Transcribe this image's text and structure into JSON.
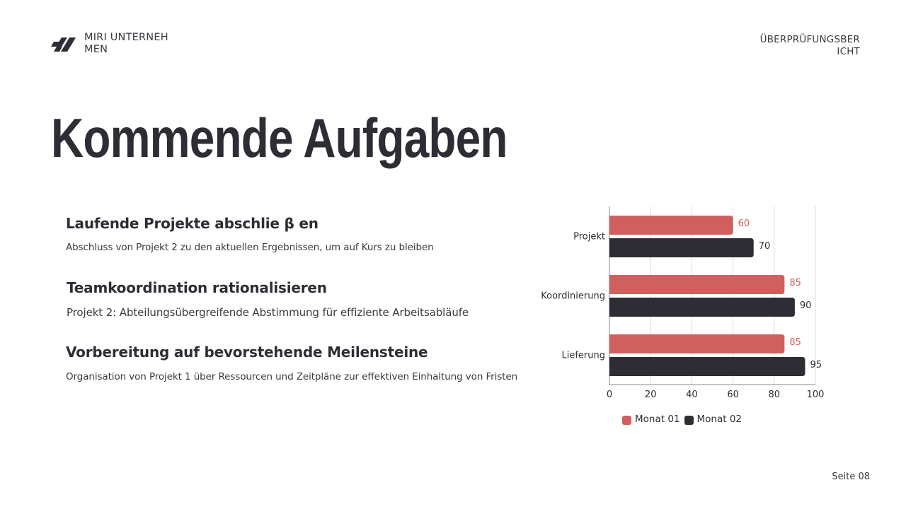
{
  "header": {
    "company_name": "MIRI UNTERNEH MEN",
    "logo_icon": "slanted-bars-logo-icon",
    "report_label": "ÜBERPRÜFUNGSBER ICHT"
  },
  "title": "Kommende Aufgaben",
  "tasks": [
    {
      "heading": "Laufende Projekte abschlie β en",
      "description": "Abschluss von Projekt 2 zu den aktuellen Ergebnissen, um auf Kurs zu bleiben"
    },
    {
      "heading": "Teamkoordination rationalisieren",
      "description": "Projekt 2: Abteilungsübergreifende Abstimmung für effiziente Arbeitsabläufe"
    },
    {
      "heading": "Vorbereitung auf bevorstehende Meilensteine",
      "description": "Organisation von Projekt 1 über Ressourcen und Zeitpläne zur effektiven Einhaltung von Fristen"
    }
  ],
  "colors": {
    "series1": "#d0605e",
    "series2": "#2e2d35",
    "grid": "#dcdcdc",
    "axis": "#8a8a8a"
  },
  "chart_data": {
    "type": "bar",
    "orientation": "horizontal",
    "title": "",
    "xlabel": "",
    "ylabel": "",
    "categories": [
      "Projekt",
      "Koordinierung",
      "Lieferung"
    ],
    "series": [
      {
        "name": "Monat 01",
        "values": [
          60,
          85,
          85
        ]
      },
      {
        "name": "Monat 02",
        "values": [
          70,
          90,
          95
        ]
      }
    ],
    "xlim": [
      0,
      100
    ],
    "x_ticks": [
      "0",
      "20",
      "40",
      "60",
      "80",
      "100"
    ],
    "grid": true,
    "data_labels": true,
    "legend_position": "bottom"
  },
  "legend": [
    {
      "label": "Monat 01"
    },
    {
      "label": "Monat 02"
    }
  ],
  "footer": {
    "page_label": "Seite 08"
  }
}
